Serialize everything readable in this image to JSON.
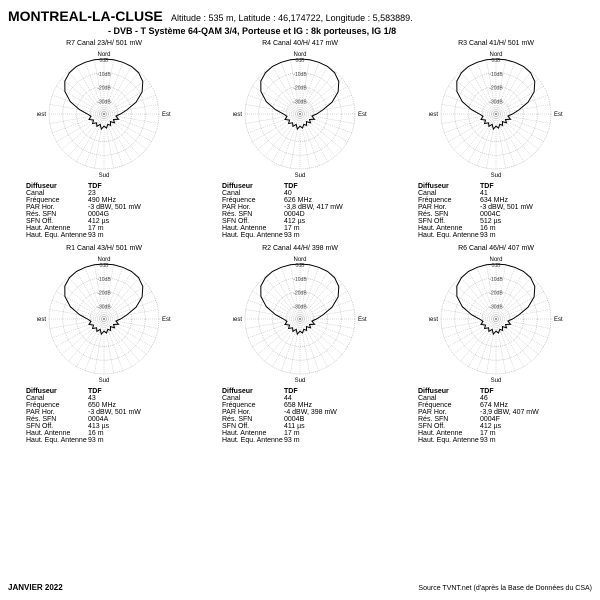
{
  "header": {
    "title": "MONTREAL-LA-CLUSE",
    "subtitle": "Altitude : 535 m, Latitude : 46,174722, Longitude : 5,583889.",
    "line2": "- DVB - T    Système 64-QAM 3/4, Porteuse et IG : 8k porteuses, IG 1/8"
  },
  "polar_style": {
    "radius": 55,
    "rings": 4,
    "ring_color": "#888",
    "ring_dash": "1,1",
    "trace_color": "#000",
    "trace_width": 1,
    "cardinals": [
      "Nord",
      "Est",
      "Sud",
      "Ouest"
    ],
    "axis_labels": [
      "0dB",
      "-10dB",
      "-20dB",
      "-30dB"
    ],
    "axis_font": 5
  },
  "charts": [
    {
      "label": "R7  Canal  23/H/ 501 mW",
      "specs": {
        "Diffuseur": "TDF",
        "Canal": "23",
        "Fréquence": "490 MHz",
        "PAR Hor.": "-3 dBW, 501 mW",
        "Rés. SFN": "0004G",
        "SFN Off.": "412 µs",
        "Haut. Antenne": "17 m",
        "Haut. Equ. Antenne": "93 m"
      }
    },
    {
      "label": "R4  Canal  40/H/ 417 mW",
      "specs": {
        "Diffuseur": "TDF",
        "Canal": "40",
        "Fréquence": "626 MHz",
        "PAR Hor.": "-3,8 dBW, 417 mW",
        "Rés. SFN": "0004D",
        "SFN Off.": "412 µs",
        "Haut. Antenne": "17 m",
        "Haut. Equ. Antenne": "93 m"
      }
    },
    {
      "label": "R3  Canal  41/H/ 501 mW",
      "specs": {
        "Diffuseur": "TDF",
        "Canal": "41",
        "Fréquence": "634 MHz",
        "PAR Hor.": "-3 dBW, 501 mW",
        "Rés. SFN": "0004C",
        "SFN Off.": "512 µs",
        "Haut. Antenne": "16 m",
        "Haut. Equ. Antenne": "93 m"
      }
    },
    {
      "label": "R1  Canal  43/H/ 501 mW",
      "specs": {
        "Diffuseur": "TDF",
        "Canal": "43",
        "Fréquence": "650 MHz",
        "PAR Hor.": "-3 dBW, 501 mW",
        "Rés. SFN": "0004A",
        "SFN Off.": "413 µs",
        "Haut. Antenne": "16 m",
        "Haut. Equ. Antenne": "93 m"
      }
    },
    {
      "label": "R2  Canal  44/H/ 398 mW",
      "specs": {
        "Diffuseur": "TDF",
        "Canal": "44",
        "Fréquence": "658 MHz",
        "PAR Hor.": "-4 dBW, 398 mW",
        "Rés. SFN": "0004B",
        "SFN Off.": "411 µs",
        "Haut. Antenne": "17 m",
        "Haut. Equ. Antenne": "93 m"
      }
    },
    {
      "label": "R6  Canal  46/H/ 407 mW",
      "specs": {
        "Diffuseur": "TDF",
        "Canal": "46",
        "Fréquence": "674 MHz",
        "PAR Hor.": "-3,9 dBW, 407 mW",
        "Rés. SFN": "0004F",
        "SFN Off.": "412 µs",
        "Haut. Antenne": "17 m",
        "Haut. Equ. Antenne": "93 m"
      }
    }
  ],
  "pattern_deg": [
    {
      "a": 0,
      "r": 1.0
    },
    {
      "a": 10,
      "r": 1.0
    },
    {
      "a": 20,
      "r": 1.0
    },
    {
      "a": 30,
      "r": 1.0
    },
    {
      "a": 40,
      "r": 0.98
    },
    {
      "a": 50,
      "r": 0.92
    },
    {
      "a": 60,
      "r": 0.8
    },
    {
      "a": 70,
      "r": 0.62
    },
    {
      "a": 80,
      "r": 0.42
    },
    {
      "a": 90,
      "r": 0.3
    },
    {
      "a": 100,
      "r": 0.22
    },
    {
      "a": 110,
      "r": 0.28
    },
    {
      "a": 120,
      "r": 0.2
    },
    {
      "a": 130,
      "r": 0.25
    },
    {
      "a": 140,
      "r": 0.18
    },
    {
      "a": 150,
      "r": 0.24
    },
    {
      "a": 160,
      "r": 0.2
    },
    {
      "a": 170,
      "r": 0.26
    },
    {
      "a": 180,
      "r": 0.22
    },
    {
      "a": 190,
      "r": 0.28
    },
    {
      "a": 200,
      "r": 0.2
    },
    {
      "a": 210,
      "r": 0.26
    },
    {
      "a": 220,
      "r": 0.21
    },
    {
      "a": 230,
      "r": 0.27
    },
    {
      "a": 240,
      "r": 0.22
    },
    {
      "a": 250,
      "r": 0.29
    },
    {
      "a": 260,
      "r": 0.24
    },
    {
      "a": 270,
      "r": 0.3
    },
    {
      "a": 280,
      "r": 0.45
    },
    {
      "a": 290,
      "r": 0.65
    },
    {
      "a": 300,
      "r": 0.82
    },
    {
      "a": 310,
      "r": 0.93
    },
    {
      "a": 320,
      "r": 0.98
    },
    {
      "a": 330,
      "r": 1.0
    },
    {
      "a": 340,
      "r": 1.0
    },
    {
      "a": 350,
      "r": 1.0
    }
  ],
  "footer": {
    "left": "JANVIER  2022",
    "right": "Source TVNT.net (d'après la Base de Données du CSA)"
  }
}
